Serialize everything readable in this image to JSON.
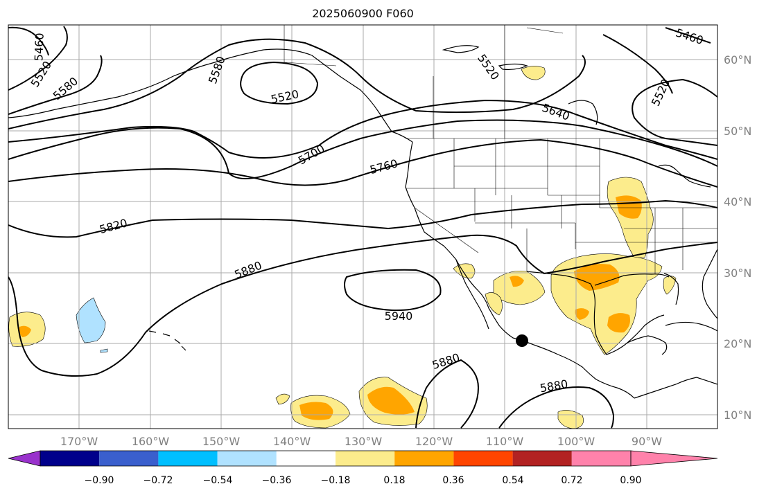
{
  "title": "2025060900 F060",
  "map": {
    "lon_range": [
      -180,
      -80
    ],
    "lat_range": [
      8,
      65
    ],
    "gridlines": true,
    "lat_labels": [
      "10°N",
      "20°N",
      "30°N",
      "40°N",
      "50°N",
      "60°N"
    ],
    "lon_labels": [
      "170°W",
      "160°W",
      "150°W",
      "140°W",
      "130°W",
      "120°W",
      "110°W",
      "100°W",
      "90°W"
    ],
    "contour_labels": [
      "5460",
      "5520",
      "5580",
      "5520",
      "5580",
      "5520",
      "5460",
      "5520",
      "5640",
      "5700",
      "5760",
      "5820",
      "5880",
      "5940",
      "5880",
      "5880"
    ],
    "marker": {
      "lon": -108,
      "lat": 20.2,
      "label": ""
    }
  },
  "colorbar": {
    "colors": [
      "#9932cc",
      "#00008b",
      "#3a5fcd",
      "#00bfff",
      "#b0e2ff",
      "#ffffff",
      "#fcec8c",
      "#ffa500",
      "#ff4500",
      "#b22222",
      "#ff82ab"
    ],
    "tick_labels": [
      "−0.90",
      "−0.72",
      "−0.54",
      "−0.36",
      "−0.18",
      "0.18",
      "0.36",
      "0.54",
      "0.72",
      "0.90"
    ]
  },
  "shading_colors": {
    "light_yellow": "#fcec8c",
    "orange": "#ffa500",
    "light_blue": "#b0e2ff"
  }
}
